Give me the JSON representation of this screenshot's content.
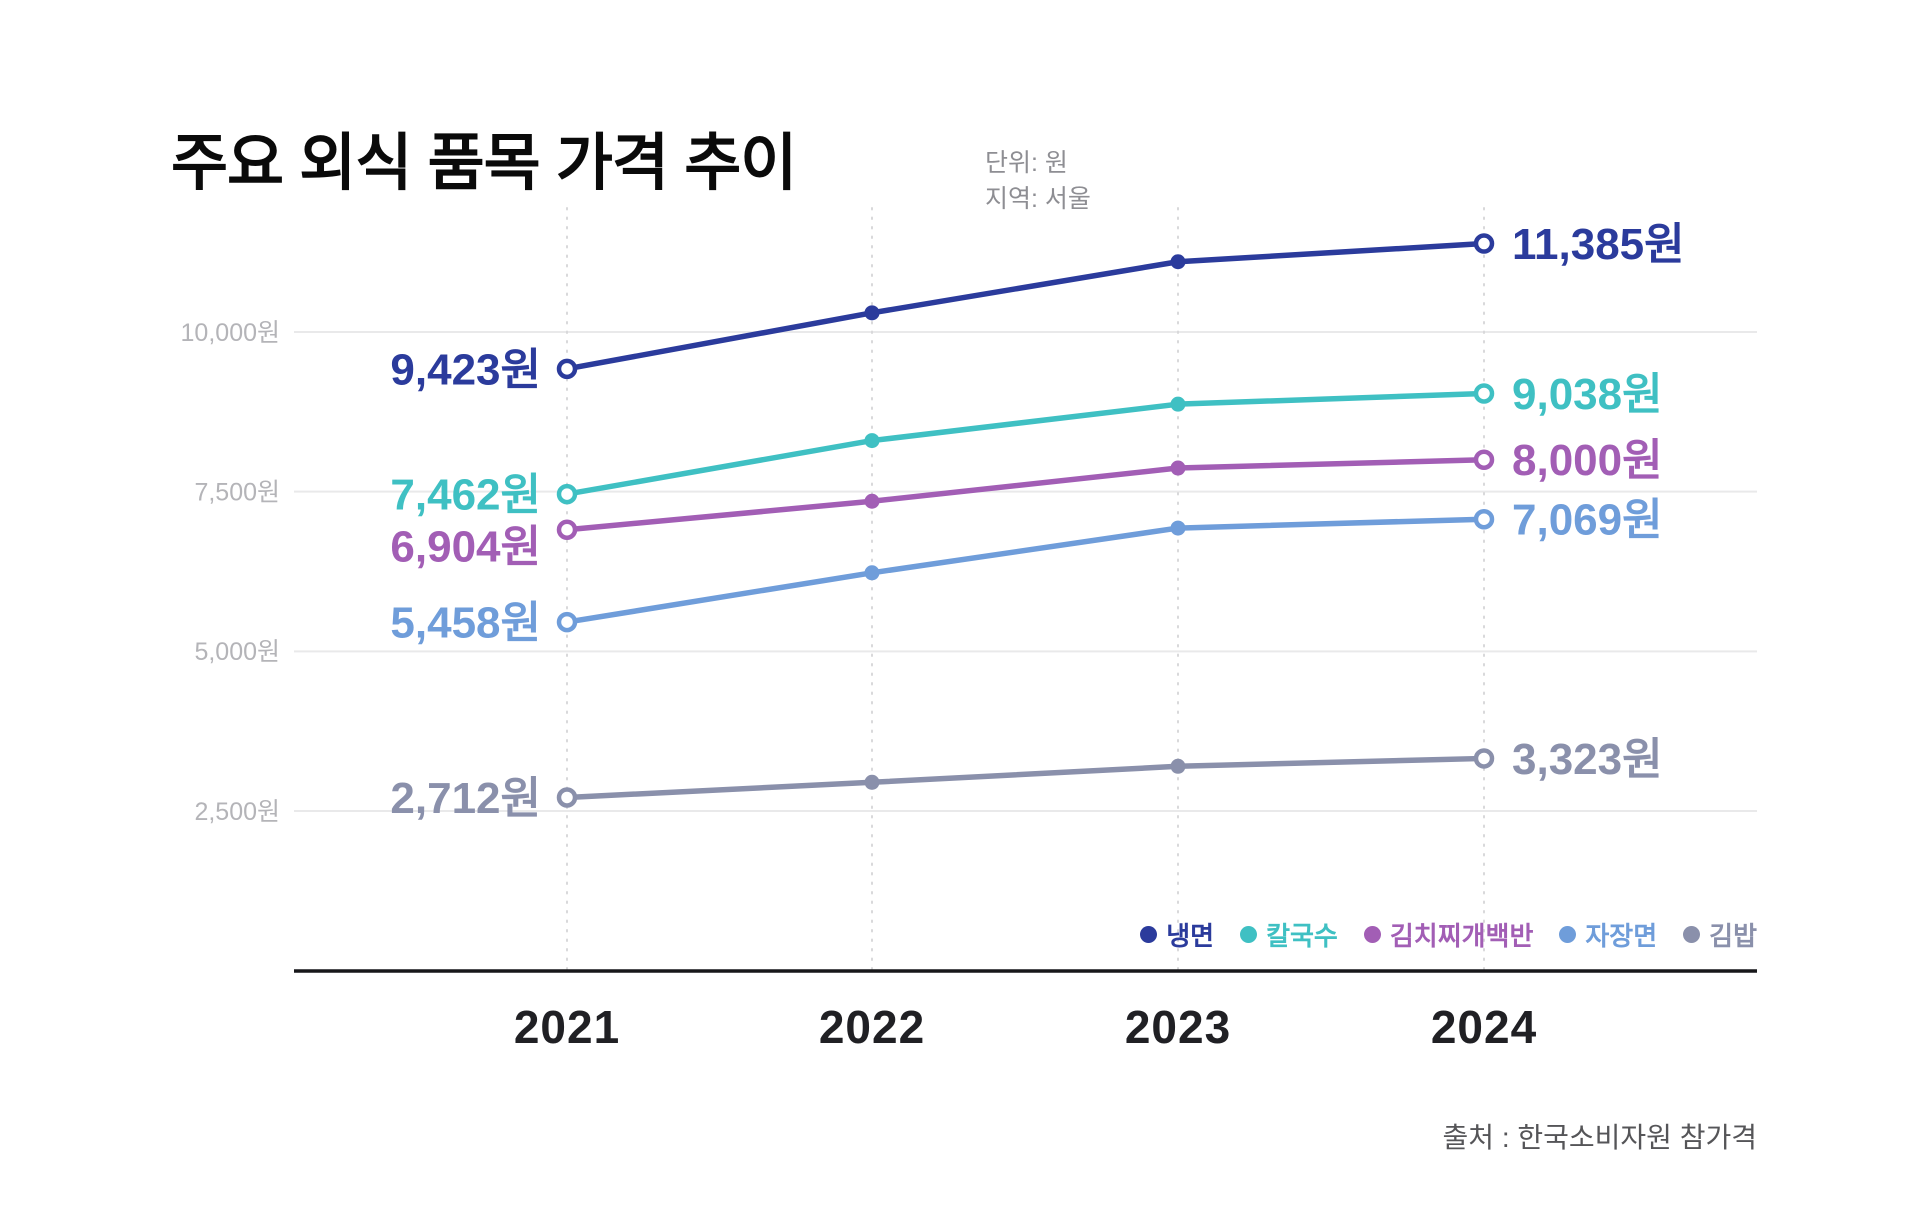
{
  "header": {
    "title": "주요 외식 품목 가격 추이",
    "unit_label": "단위: 원",
    "region_label": "지역: 서울"
  },
  "footer": {
    "source": "출처 : 한국소비자원 참가격"
  },
  "chart_data": {
    "type": "line",
    "title": "주요 외식 품목 가격 추이",
    "unit": "원",
    "region": "서울",
    "categories": [
      "2021",
      "2022",
      "2023",
      "2024"
    ],
    "series": [
      {
        "name": "냉면",
        "color": "#2b3b9c",
        "values": [
          9423,
          10300,
          11100,
          11385
        ],
        "label_start": "9,423원",
        "label_end": "11,385원"
      },
      {
        "name": "칼국수",
        "color": "#3fc0c3",
        "values": [
          7462,
          8300,
          8870,
          9038
        ],
        "label_start": "7,462원",
        "label_end": "9,038원"
      },
      {
        "name": "김치찌개백반",
        "color": "#a25eb5",
        "values": [
          6904,
          7350,
          7870,
          8000
        ],
        "label_start": "6,904원",
        "label_end": "8,000원"
      },
      {
        "name": "자장면",
        "color": "#6f9dda",
        "values": [
          5458,
          6230,
          6930,
          7069
        ],
        "label_start": "5,458원",
        "label_end": "7,069원"
      },
      {
        "name": "김밥",
        "color": "#8a90ab",
        "values": [
          2712,
          2950,
          3200,
          3323
        ],
        "label_start": "2,712원",
        "label_end": "3,323원"
      }
    ],
    "y_ticks": [
      {
        "value": 10000,
        "label": "10,000원"
      },
      {
        "value": 7500,
        "label": "7,500원"
      },
      {
        "value": 5000,
        "label": "5,000원"
      },
      {
        "value": 2500,
        "label": "2,500원"
      }
    ],
    "ylim": [
      1800,
      12200
    ],
    "grid": "horizontal solid lines + vertical dotted lines per year",
    "legend_position": "bottom-right",
    "point_style": "hollow circles at first/last points, solid circles in between"
  }
}
